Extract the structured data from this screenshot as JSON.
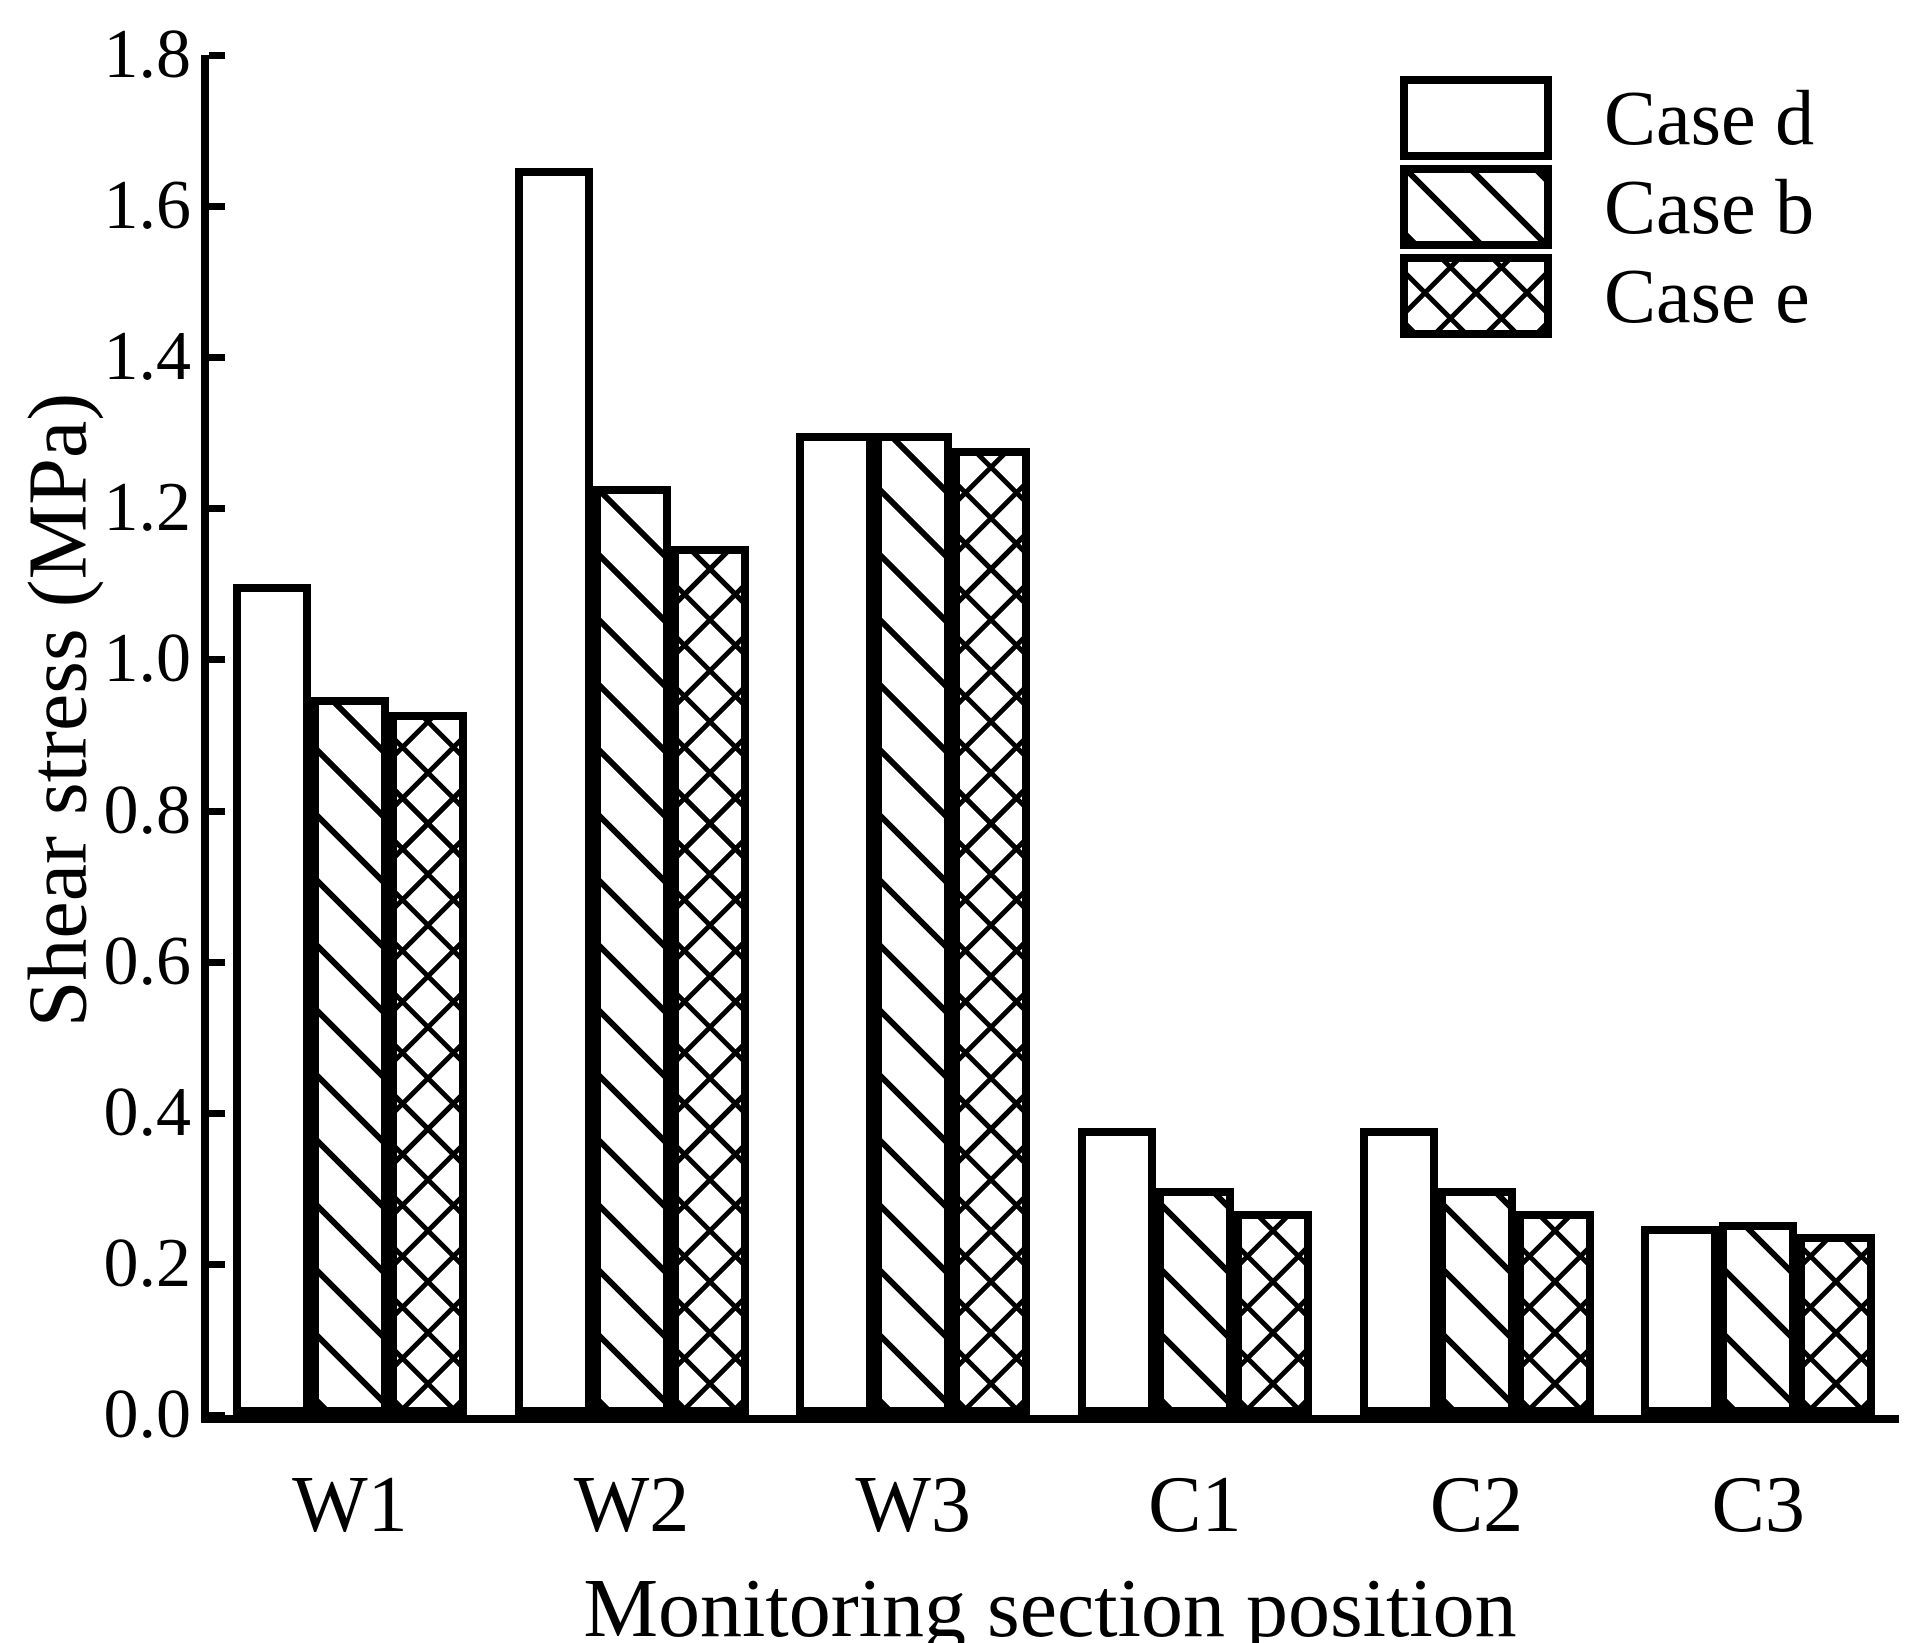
{
  "chart_data": {
    "type": "bar",
    "title": "",
    "categories": [
      "W1",
      "W2",
      "W3",
      "C1",
      "C2",
      "C3"
    ],
    "series": [
      {
        "name": "Case d",
        "pattern": "plain",
        "values": [
          1.1,
          1.65,
          1.3,
          0.38,
          0.38,
          0.25
        ]
      },
      {
        "name": "Case b",
        "pattern": "diagonal-down",
        "values": [
          0.95,
          1.23,
          1.3,
          0.3,
          0.3,
          0.255
        ]
      },
      {
        "name": "Case e",
        "pattern": "crosshatch",
        "values": [
          0.93,
          1.15,
          1.28,
          0.27,
          0.27,
          0.24
        ]
      }
    ],
    "xlabel": "Monitoring section position",
    "ylabel": "Shear stress (MPa)",
    "ylim": [
      0,
      1.8
    ],
    "ytick_step": 0.2,
    "yticks": [
      "0.0",
      "0.2",
      "0.4",
      "0.6",
      "0.8",
      "1.0",
      "1.2",
      "1.4",
      "1.6",
      "1.8"
    ],
    "grid": false,
    "legend_position": "top-right"
  },
  "colors": {
    "ink": "#000000",
    "background": "#ffffff"
  }
}
